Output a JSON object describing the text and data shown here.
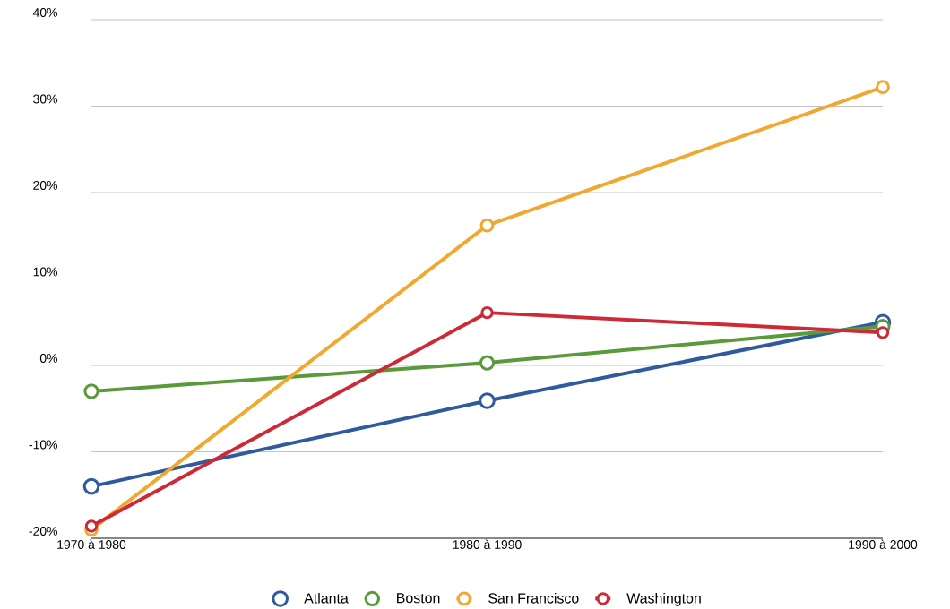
{
  "chart_data": {
    "type": "line",
    "categories": [
      "1970 à 1980",
      "1980 à 1990",
      "1990 à 2000"
    ],
    "series": [
      {
        "name": "Atlanta",
        "color": "#2f5a9e",
        "values": [
          -14.0,
          -4.1,
          5.0
        ]
      },
      {
        "name": "Boston",
        "color": "#5a9a3a",
        "values": [
          -3.0,
          0.3,
          4.5
        ]
      },
      {
        "name": "San Francisco",
        "color": "#f0a830",
        "values": [
          -19.0,
          16.2,
          32.2
        ]
      },
      {
        "name": "Washington",
        "color": "#cc2a36",
        "values": [
          -18.6,
          6.1,
          3.8
        ]
      }
    ],
    "ylim": [
      -20,
      40
    ],
    "yticks": [
      {
        "value": -20,
        "label": "-20%"
      },
      {
        "value": -10,
        "label": "-10%"
      },
      {
        "value": 0,
        "label": "0%"
      },
      {
        "value": 10,
        "label": "10%"
      },
      {
        "value": 20,
        "label": "20%"
      },
      {
        "value": 30,
        "label": "30%"
      },
      {
        "value": 40,
        "label": "40%"
      }
    ],
    "grid": "y",
    "legend": "bottom",
    "marker": "circle",
    "line_style": "solid"
  }
}
